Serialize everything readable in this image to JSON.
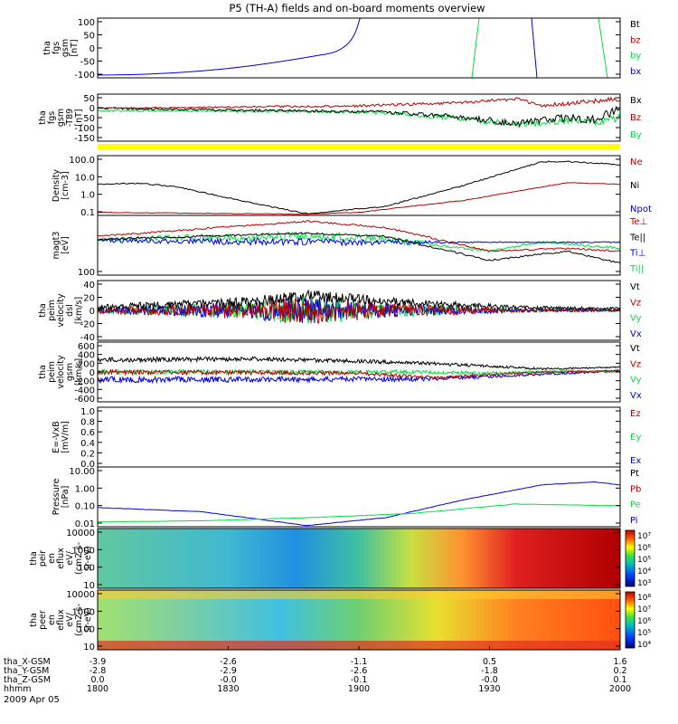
{
  "title": "P5 (TH-A) fields and on-board moments overview",
  "date_label": "2009 Apr 05",
  "colors": {
    "black": "#000000",
    "red": "#b40000",
    "green": "#00e040",
    "blue": "#0000dd",
    "yellow": "#ffff00",
    "darkred": "#8b0000"
  },
  "time_axis": {
    "ticks": [
      "1800",
      "1830",
      "1900",
      "1930",
      "2000"
    ],
    "rows": [
      {
        "label": "tha_X-GSM",
        "values": [
          "-3.9",
          "-2.6",
          "-1.1",
          "0.5",
          "1.6"
        ]
      },
      {
        "label": "tha_Y-GSM",
        "values": [
          "-2.8",
          "-2.9",
          "-2.6",
          "-1.8",
          "0.2"
        ]
      },
      {
        "label": "tha_Z-GSM",
        "values": [
          "0.0",
          "-0.0",
          "-0.1",
          "-0.0",
          "0.1"
        ]
      },
      {
        "label": "hhmm",
        "values": [
          "1800",
          "1830",
          "1900",
          "1930",
          "2000"
        ]
      }
    ]
  },
  "panels": [
    {
      "id": "fgs",
      "ylabel": [
        "tha",
        "fgs",
        "gsm",
        "[nT]"
      ],
      "ticks": [
        "100",
        "50",
        "0",
        "-50",
        "-100"
      ],
      "legend": [
        {
          "t": "Bt",
          "c": "black"
        },
        {
          "t": "bz",
          "c": "red"
        },
        {
          "t": "by",
          "c": "green"
        },
        {
          "t": "bx",
          "c": "blue"
        }
      ]
    },
    {
      "id": "fgs_t89",
      "ylabel": [
        "tha",
        "fgs",
        "gsm",
        "-T89",
        "[nT]"
      ],
      "ticks": [
        "50",
        "0",
        "-50",
        "-100",
        "-150"
      ],
      "legend": [
        {
          "t": "Bx",
          "c": "black"
        },
        {
          "t": "Bz",
          "c": "red"
        },
        {
          "t": "By",
          "c": "green"
        }
      ]
    },
    {
      "id": "density",
      "ylabel": [
        "Density",
        "[cm-3]"
      ],
      "ticks": [
        "100.0",
        "10.0",
        "1.0",
        "0.1"
      ],
      "legend": [
        {
          "t": "Ne",
          "c": "red"
        },
        {
          "t": "Ni",
          "c": "black"
        },
        {
          "t": "Npot",
          "c": "blue"
        }
      ]
    },
    {
      "id": "temp",
      "ylabel": [
        "magt3",
        "[eV]"
      ],
      "ticks": [
        "100"
      ],
      "legend": [
        {
          "t": "Te⊥",
          "c": "red"
        },
        {
          "t": "Te||",
          "c": "black"
        },
        {
          "t": "Ti⊥",
          "c": "blue"
        },
        {
          "t": "Ti||",
          "c": "green"
        }
      ]
    },
    {
      "id": "velocity_e",
      "ylabel": [
        "tha",
        "peim",
        "velocity",
        "dsl",
        "[km/s]"
      ],
      "ticks": [
        "40",
        "20",
        "0",
        "-20",
        "-40"
      ],
      "legend": [
        {
          "t": "Vt",
          "c": "black"
        },
        {
          "t": "Vz",
          "c": "red"
        },
        {
          "t": "Vy",
          "c": "green"
        },
        {
          "t": "Vx",
          "c": "blue"
        }
      ]
    },
    {
      "id": "velocity_i",
      "ylabel": [
        "tha",
        "peim",
        "velocity",
        "gsm",
        "[km/s]"
      ],
      "ticks": [
        "600",
        "400",
        "200",
        "0",
        "-200",
        "-400",
        "-600"
      ],
      "legend": [
        {
          "t": "Vt",
          "c": "black"
        },
        {
          "t": "Vz",
          "c": "red"
        },
        {
          "t": "Vy",
          "c": "green"
        },
        {
          "t": "Vx",
          "c": "blue"
        }
      ]
    },
    {
      "id": "efield",
      "ylabel": [
        "E=-VxB",
        "[mV/m]"
      ],
      "ticks": [
        "1.0",
        "0.8",
        "0.6",
        "0.4",
        "0.2",
        "0.0"
      ],
      "legend": [
        {
          "t": "Ez",
          "c": "red"
        },
        {
          "t": "Ey",
          "c": "green"
        },
        {
          "t": "Ex",
          "c": "blue"
        }
      ]
    },
    {
      "id": "pressure",
      "ylabel": [
        "Pressure",
        "[nPa]"
      ],
      "ticks": [
        "10.00",
        "1.00",
        "0.10",
        "0.01"
      ],
      "legend": [
        {
          "t": "Pt",
          "c": "black"
        },
        {
          "t": "Pb",
          "c": "red"
        },
        {
          "t": "Pe",
          "c": "green"
        },
        {
          "t": "Pi",
          "c": "blue"
        }
      ]
    },
    {
      "id": "peir",
      "ylabel": [
        "tha",
        "peir",
        "en",
        "eflux",
        "eV/",
        "(cm2-s-",
        "sr-eV)"
      ],
      "ticks": [
        "10000",
        "1000",
        "100",
        "10"
      ],
      "colorbar": [
        "10⁷",
        "10⁶",
        "10⁵",
        "10⁴",
        "10³"
      ]
    },
    {
      "id": "peer",
      "ylabel": [
        "tha",
        "peer",
        "en",
        "eflux",
        "eV/",
        "(cm2-s-",
        "sr-eV)"
      ],
      "ticks": [
        "10000",
        "1000",
        "100",
        "10"
      ],
      "colorbar": [
        "10⁸",
        "10⁷",
        "10⁶",
        "10⁵",
        "10⁴"
      ]
    }
  ],
  "chart_data": {
    "type": "line",
    "title": "P5 (TH-A) fields and on-board moments overview",
    "x": [
      "1800",
      "1810",
      "1820",
      "1830",
      "1840",
      "1850",
      "1900",
      "1910",
      "1920",
      "1930",
      "1940",
      "1950",
      "2000"
    ],
    "series": [
      {
        "name": "Ni",
        "panel": "density",
        "values": [
          2.0,
          2.5,
          1.0,
          0.4,
          0.15,
          0.12,
          0.3,
          1.5,
          8,
          40,
          110,
          100,
          60
        ]
      },
      {
        "name": "Ne",
        "panel": "density",
        "values": [
          0.2,
          0.18,
          0.15,
          0.13,
          0.11,
          0.1,
          0.12,
          0.3,
          0.8,
          2.0,
          4.0,
          4.5,
          3.5
        ]
      },
      {
        "name": "Pi",
        "panel": "pressure",
        "values": [
          0.08,
          0.07,
          0.04,
          0.02,
          0.008,
          0.005,
          0.02,
          0.1,
          0.4,
          1.2,
          2.5,
          2.6,
          1.8
        ]
      },
      {
        "name": "Pe",
        "panel": "pressure",
        "values": [
          0.012,
          0.012,
          0.013,
          0.014,
          0.016,
          0.02,
          0.03,
          0.05,
          0.1,
          0.2,
          0.35,
          0.4,
          0.3
        ]
      },
      {
        "name": "Vt",
        "panel": "velocity_i",
        "values": [
          300,
          280,
          260,
          290,
          260,
          240,
          220,
          200,
          150,
          110,
          80,
          100,
          130
        ]
      },
      {
        "name": "Bx",
        "panel": "fgs_t89",
        "values": [
          20,
          10,
          5,
          0,
          -5,
          -10,
          -20,
          -40,
          -70,
          -90,
          -60,
          -80,
          20
        ]
      },
      {
        "name": "Bz",
        "panel": "fgs_t89",
        "values": [
          20,
          22,
          25,
          28,
          30,
          32,
          35,
          40,
          50,
          60,
          40,
          45,
          40
        ]
      }
    ]
  }
}
